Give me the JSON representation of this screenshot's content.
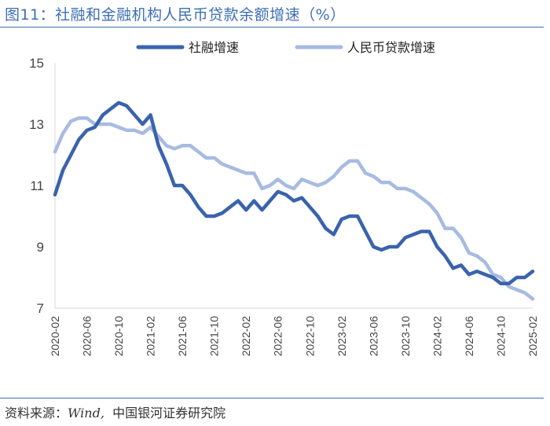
{
  "header": {
    "title": "图11：社融和金融机构人民币贷款余额增速（%）"
  },
  "footer": {
    "source_label": "资料来源：",
    "source_wind": "Wind,",
    "source_org": "  中国银河证券研究院"
  },
  "colors": {
    "series1": "#3a63ad",
    "series2": "#a7bbe2",
    "accent": "#3f6fb5"
  },
  "chart_data": {
    "type": "line",
    "title": "社融和金融机构人民币贷款余额增速（%）",
    "xlabel": "",
    "ylabel": "",
    "ylim": [
      7,
      15
    ],
    "yticks": [
      7,
      9,
      11,
      13,
      15
    ],
    "legend_position": "top",
    "x": [
      "2020-02",
      "2020-03",
      "2020-04",
      "2020-05",
      "2020-06",
      "2020-07",
      "2020-08",
      "2020-09",
      "2020-10",
      "2020-11",
      "2020-12",
      "2021-01",
      "2021-02",
      "2021-03",
      "2021-04",
      "2021-05",
      "2021-06",
      "2021-07",
      "2021-08",
      "2021-09",
      "2021-10",
      "2021-11",
      "2021-12",
      "2022-01",
      "2022-02",
      "2022-03",
      "2022-04",
      "2022-05",
      "2022-06",
      "2022-07",
      "2022-08",
      "2022-09",
      "2022-10",
      "2022-11",
      "2022-12",
      "2023-01",
      "2023-02",
      "2023-03",
      "2023-04",
      "2023-05",
      "2023-06",
      "2023-07",
      "2023-08",
      "2023-09",
      "2023-10",
      "2023-11",
      "2023-12",
      "2024-01",
      "2024-02",
      "2024-03",
      "2024-04",
      "2024-05",
      "2024-06",
      "2024-07",
      "2024-08",
      "2024-09",
      "2024-10",
      "2024-11",
      "2024-12",
      "2025-01",
      "2025-02"
    ],
    "x_tick_labels": [
      "2020-02",
      "2020-06",
      "2020-10",
      "2021-02",
      "2021-06",
      "2021-10",
      "2022-02",
      "2022-06",
      "2022-10",
      "2023-02",
      "2023-06",
      "2023-10",
      "2024-02",
      "2024-06",
      "2024-10",
      "2025-02"
    ],
    "series": [
      {
        "name": "社融增速",
        "values": [
          10.7,
          11.5,
          12.0,
          12.5,
          12.8,
          12.9,
          13.3,
          13.5,
          13.7,
          13.6,
          13.3,
          13.0,
          13.3,
          12.3,
          11.7,
          11.0,
          11.0,
          10.7,
          10.3,
          10.0,
          10.0,
          10.1,
          10.3,
          10.5,
          10.2,
          10.5,
          10.2,
          10.5,
          10.8,
          10.7,
          10.5,
          10.6,
          10.3,
          10.0,
          9.6,
          9.4,
          9.9,
          10.0,
          10.0,
          9.5,
          9.0,
          8.9,
          9.0,
          9.0,
          9.3,
          9.4,
          9.5,
          9.5,
          9.0,
          8.7,
          8.3,
          8.4,
          8.1,
          8.2,
          8.1,
          8.0,
          7.8,
          7.8,
          8.0,
          8.0,
          8.2
        ]
      },
      {
        "name": "人民币贷款增速",
        "values": [
          12.1,
          12.7,
          13.1,
          13.2,
          13.2,
          13.0,
          13.0,
          13.0,
          12.9,
          12.8,
          12.8,
          12.7,
          12.9,
          12.6,
          12.3,
          12.2,
          12.3,
          12.3,
          12.1,
          11.9,
          11.9,
          11.7,
          11.6,
          11.5,
          11.4,
          11.4,
          10.9,
          11.0,
          11.2,
          11.0,
          10.9,
          11.2,
          11.1,
          11.0,
          11.1,
          11.3,
          11.6,
          11.8,
          11.8,
          11.4,
          11.3,
          11.1,
          11.1,
          10.9,
          10.9,
          10.8,
          10.6,
          10.4,
          10.1,
          9.6,
          9.6,
          9.3,
          8.8,
          8.7,
          8.5,
          8.1,
          8.0,
          7.7,
          7.6,
          7.5,
          7.3
        ]
      }
    ]
  }
}
